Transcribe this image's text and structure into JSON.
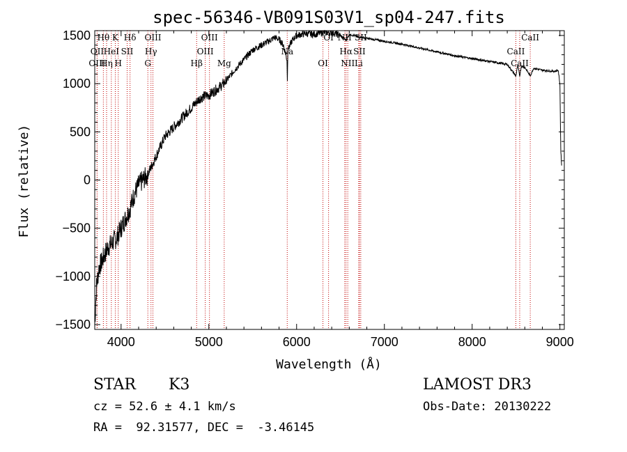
{
  "chart_data": {
    "type": "line",
    "title": "spec-56346-VB091S03V1_sp04-247.fits",
    "xlabel": "Wavelength (Å)",
    "ylabel": "Flux (relative)",
    "xlim": [
      3700,
      9050
    ],
    "ylim": [
      -1550,
      1550
    ],
    "xticks": [
      4000,
      5000,
      6000,
      7000,
      8000,
      9000
    ],
    "yticks": [
      -1500,
      -1000,
      -500,
      0,
      500,
      1000,
      1500
    ],
    "grid": false,
    "series": [
      {
        "name": "flux",
        "x": [
          3700,
          3720,
          3750,
          3780,
          3800,
          3850,
          3900,
          3950,
          4000,
          4050,
          4100,
          4150,
          4200,
          4250,
          4300,
          4350,
          4400,
          4450,
          4500,
          4600,
          4700,
          4800,
          4850,
          4900,
          4950,
          5000,
          5100,
          5170,
          5200,
          5300,
          5400,
          5500,
          5600,
          5700,
          5750,
          5800,
          5850,
          5890,
          5895,
          5900,
          5950,
          6000,
          6100,
          6200,
          6300,
          6400,
          6500,
          6563,
          6600,
          6700,
          6800,
          7000,
          7200,
          7400,
          7600,
          7800,
          8000,
          8200,
          8400,
          8498,
          8520,
          8542,
          8560,
          8600,
          8662,
          8700,
          8800,
          8900,
          8950,
          8980,
          9000,
          9010,
          9020
        ],
        "y": [
          -1500,
          -1100,
          -900,
          -850,
          -800,
          -700,
          -650,
          -600,
          -500,
          -400,
          -300,
          -150,
          -50,
          0,
          50,
          150,
          250,
          350,
          450,
          550,
          650,
          750,
          800,
          850,
          870,
          880,
          950,
          1000,
          1030,
          1150,
          1250,
          1350,
          1400,
          1450,
          1480,
          1460,
          1400,
          1250,
          1020,
          1350,
          1450,
          1500,
          1520,
          1510,
          1530,
          1530,
          1500,
          1450,
          1510,
          1490,
          1470,
          1440,
          1410,
          1370,
          1330,
          1290,
          1260,
          1230,
          1200,
          1080,
          1190,
          1080,
          1180,
          1170,
          1080,
          1160,
          1140,
          1130,
          1130,
          1140,
          1000,
          300,
          150
        ]
      }
    ],
    "spectral_lines": [
      {
        "label": "Hθ",
        "wavelength": 3798
      },
      {
        "label": "OII",
        "wavelength": 3727
      },
      {
        "label": "OIII",
        "wavelength": 3727
      },
      {
        "label": "K",
        "wavelength": 3934
      },
      {
        "label": "HeI",
        "wavelength": 3889
      },
      {
        "label": "Hη",
        "wavelength": 3835
      },
      {
        "label": "Hδ",
        "wavelength": 4102
      },
      {
        "label": "SII",
        "wavelength": 4069
      },
      {
        "label": "H",
        "wavelength": 3968
      },
      {
        "label": "OIII",
        "wavelength": 4363
      },
      {
        "label": "Hγ",
        "wavelength": 4341
      },
      {
        "label": "G",
        "wavelength": 4305
      },
      {
        "label": "OIII",
        "wavelength": 5007
      },
      {
        "label": "OIII",
        "wavelength": 4959
      },
      {
        "label": "Hβ",
        "wavelength": 4861
      },
      {
        "label": "Mg",
        "wavelength": 5175
      },
      {
        "label": "Na",
        "wavelength": 5893
      },
      {
        "label": "OI",
        "wavelength": 6300
      },
      {
        "label": "OI",
        "wavelength": 6364
      },
      {
        "label": "Hα",
        "wavelength": 6563
      },
      {
        "label": "NII",
        "wavelength": 6583
      },
      {
        "label": "NII",
        "wavelength": 6548
      },
      {
        "label": "SII",
        "wavelength": 6716
      },
      {
        "label": "Li",
        "wavelength": 6708
      },
      {
        "label": "SII",
        "wavelength": 6731
      },
      {
        "label": "CaII",
        "wavelength": 8498
      },
      {
        "label": "CaII",
        "wavelength": 8542
      },
      {
        "label": "CaII",
        "wavelength": 8662
      }
    ]
  },
  "info": {
    "object_class": "STAR",
    "subclass": "K3",
    "survey": "LAMOST DR3",
    "redshift_line": "cz = 52.6 ± 4.1 km/s",
    "obs_date_line": "Obs-Date: 20130222",
    "coords_line": "RA =  92.31577, DEC =  -3.46145"
  }
}
